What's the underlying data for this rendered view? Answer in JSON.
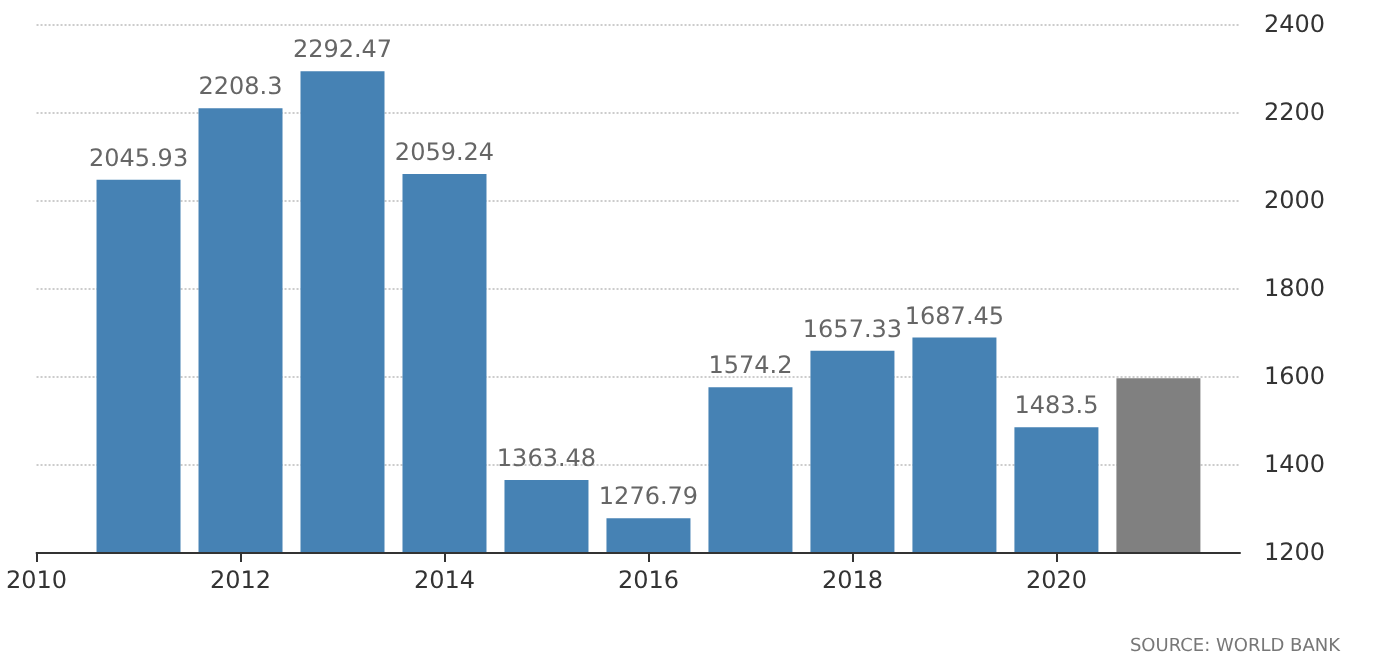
{
  "chart_data": {
    "type": "bar",
    "x": [
      2011,
      2012,
      2013,
      2014,
      2015,
      2016,
      2017,
      2018,
      2019,
      2020,
      2021
    ],
    "values": [
      2045.93,
      2208.3,
      2292.47,
      2059.24,
      1363.48,
      1276.79,
      1574.2,
      1657.33,
      1687.45,
      1483.5,
      1595
    ],
    "value_labels": [
      "2045.93",
      "2208.3",
      "2292.47",
      "2059.24",
      "1363.48",
      "1276.79",
      "1574.2",
      "1657.33",
      "1687.45",
      "1483.5",
      null
    ],
    "colors": [
      "#4682b4",
      "#4682b4",
      "#4682b4",
      "#4682b4",
      "#4682b4",
      "#4682b4",
      "#4682b4",
      "#4682b4",
      "#4682b4",
      "#4682b4",
      "#808080"
    ],
    "xlim": [
      2010,
      2021.8
    ],
    "xticks": [
      2010,
      2012,
      2014,
      2016,
      2018,
      2020
    ],
    "ylim": [
      1200,
      2400
    ],
    "yticks": [
      1200,
      1400,
      1600,
      1800,
      2000,
      2200,
      2400
    ],
    "grid": "y",
    "annotations": [
      "SOURCE: WORLD BANK"
    ]
  }
}
